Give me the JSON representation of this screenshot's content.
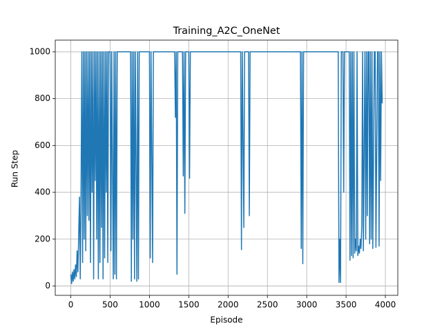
{
  "chart_data": {
    "type": "line",
    "title": "Training_A2C_OneNet",
    "x_label": "Episode",
    "y_label": "Run Step",
    "color": "#1f77b4",
    "grid": true,
    "xlim": [
      -198,
      4158
    ],
    "ylim": [
      -40,
      1050
    ],
    "xticks": [
      0,
      500,
      1000,
      1500,
      2000,
      2500,
      3000,
      3500,
      4000
    ],
    "yticks": [
      0,
      200,
      400,
      600,
      800,
      1000
    ],
    "x": [
      0,
      10,
      20,
      30,
      40,
      50,
      60,
      70,
      80,
      90,
      100,
      110,
      120,
      130,
      140,
      150,
      160,
      170,
      180,
      190,
      200,
      210,
      220,
      230,
      240,
      250,
      260,
      270,
      280,
      290,
      300,
      310,
      320,
      330,
      340,
      350,
      360,
      370,
      380,
      390,
      400,
      410,
      420,
      430,
      440,
      450,
      460,
      470,
      480,
      500,
      510,
      520,
      540,
      550,
      560,
      570,
      580,
      590,
      760,
      770,
      780,
      790,
      800,
      810,
      820,
      840,
      850,
      860,
      870,
      880,
      1000,
      1010,
      1020,
      1040,
      1050,
      1320,
      1330,
      1340,
      1350,
      1360,
      1420,
      1430,
      1440,
      1450,
      1460,
      1500,
      1510,
      1520,
      2160,
      2170,
      2180,
      2200,
      2210,
      2260,
      2270,
      2280,
      2920,
      2930,
      2940,
      2950,
      2960,
      3400,
      3410,
      3420,
      3430,
      3440,
      3460,
      3470,
      3480,
      3540,
      3550,
      3560,
      3570,
      3580,
      3590,
      3600,
      3610,
      3620,
      3630,
      3640,
      3650,
      3660,
      3670,
      3680,
      3690,
      3700,
      3710,
      3720,
      3740,
      3750,
      3760,
      3770,
      3780,
      3790,
      3800,
      3810,
      3820,
      3830,
      3840,
      3860,
      3870,
      3880,
      3900,
      3910,
      3920,
      3930,
      3940,
      3950,
      3960
    ],
    "values": [
      50,
      10,
      60,
      20,
      70,
      30,
      90,
      40,
      150,
      60,
      220,
      380,
      30,
      400,
      1000,
      100,
      1000,
      200,
      1000,
      150,
      1000,
      300,
      1000,
      280,
      1000,
      100,
      1000,
      400,
      1000,
      30,
      1000,
      450,
      1000,
      200,
      1000,
      30,
      1000,
      100,
      1000,
      250,
      1000,
      30,
      1000,
      120,
      1000,
      400,
      1000,
      100,
      1000,
      1000,
      150,
      1000,
      30,
      1000,
      50,
      1000,
      30,
      1000,
      1000,
      20,
      1000,
      200,
      1000,
      30,
      1000,
      20,
      1000,
      30,
      1000,
      1000,
      1000,
      120,
      1000,
      100,
      1000,
      1000,
      720,
      1000,
      50,
      1000,
      1000,
      470,
      1000,
      310,
      1000,
      1000,
      460,
      1000,
      1000,
      155,
      1000,
      250,
      1000,
      1000,
      300,
      1000,
      1000,
      160,
      1000,
      95,
      1000,
      1000,
      15,
      200,
      15,
      1000,
      1000,
      400,
      1000,
      1000,
      110,
      1000,
      130,
      1000,
      120,
      1000,
      140,
      200,
      150,
      1000,
      130,
      170,
      140,
      200,
      160,
      260,
      1000,
      150,
      1000,
      200,
      1000,
      300,
      1000,
      1000,
      180,
      1000,
      200,
      1000,
      160,
      1000,
      1000,
      165,
      1000,
      1000,
      170,
      1000,
      450,
      1000,
      780
    ]
  }
}
